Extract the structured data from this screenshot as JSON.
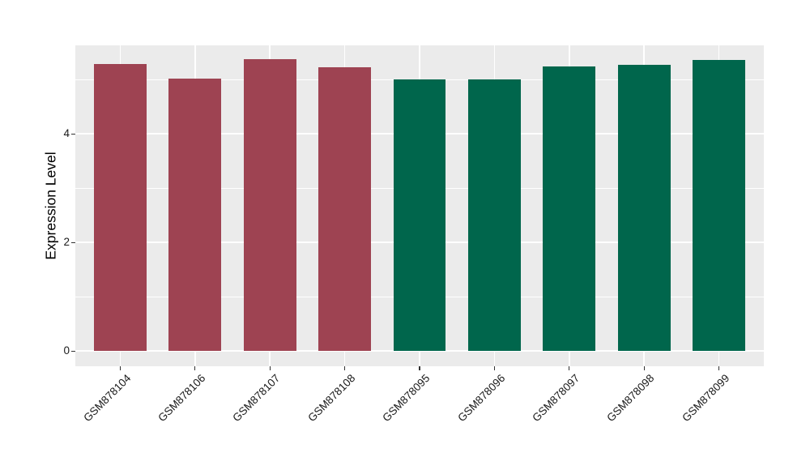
{
  "chart_data": {
    "type": "bar",
    "title": "",
    "ylabel": "Expression Level",
    "xlabel": "",
    "categories": [
      "GSM878104",
      "GSM878106",
      "GSM878107",
      "GSM878108",
      "GSM878095",
      "GSM878096",
      "GSM878097",
      "GSM878098",
      "GSM878099"
    ],
    "values": [
      5.29,
      5.02,
      5.37,
      5.23,
      5.0,
      5.0,
      5.24,
      5.27,
      5.36
    ],
    "bar_colors": [
      "#9E4352",
      "#9E4352",
      "#9E4352",
      "#9E4352",
      "#00664C",
      "#00664C",
      "#00664C",
      "#00664C",
      "#00664C"
    ],
    "groups": {
      "maroon_group": [
        "GSM878104",
        "GSM878106",
        "GSM878107",
        "GSM878108"
      ],
      "green_group": [
        "GSM878095",
        "GSM878096",
        "GSM878097",
        "GSM878098",
        "GSM878099"
      ]
    },
    "yticks": [
      0,
      2,
      4
    ],
    "yticks_minor": [
      1,
      3,
      5
    ],
    "ylim": [
      -0.28,
      5.63
    ],
    "x_label_angle_deg": 45,
    "legend": "none",
    "grid": "white major and minor on grey panel",
    "colors": {
      "panel_background": "#EBEBEB",
      "gridline": "#FFFFFF",
      "bar_maroon": "#9E4352",
      "bar_green": "#00664C",
      "axis_text": "#1a1a1a",
      "tick_mark": "#333333",
      "figure_background": "#FFFFFF"
    }
  }
}
